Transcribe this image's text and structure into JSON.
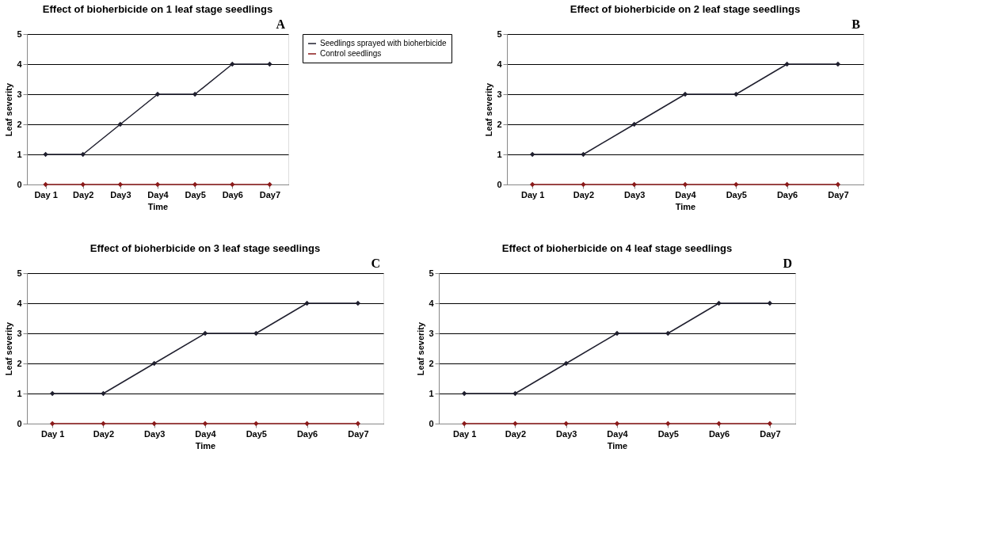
{
  "chart_data": [
    {
      "type": "line",
      "title": "Effect of bioherbicide on 1 leaf stage seedlings",
      "xlabel": "Time",
      "ylabel": "Leaf severity",
      "annotations": [
        "A"
      ],
      "categories": [
        "Day 1",
        "Day2",
        "Day3",
        "Day4",
        "Day5",
        "Day6",
        "Day7"
      ],
      "series": [
        {
          "name": "Seedlings sprayed with bioherbicide",
          "color": "#1f1f2e",
          "values": [
            1,
            1,
            2,
            3,
            3,
            4,
            4
          ]
        },
        {
          "name": "Control seedlings",
          "color": "#8b1a1a",
          "values": [
            0,
            0,
            0,
            0,
            0,
            0,
            0
          ]
        }
      ],
      "ylim": [
        0,
        5
      ],
      "yticks": [
        0,
        1,
        2,
        3,
        4,
        5
      ],
      "grid": "y",
      "legend": "right",
      "marker": "diamond",
      "line_style": "solid"
    },
    {
      "type": "line",
      "title": "Effect of bioherbicide on 2 leaf stage seedlings",
      "xlabel": "Time",
      "ylabel": "Leaf severity",
      "annotations": [
        "B"
      ],
      "categories": [
        "Day 1",
        "Day2",
        "Day3",
        "Day4",
        "Day5",
        "Day6",
        "Day7"
      ],
      "series": [
        {
          "color": "#1f1f2e",
          "values": [
            1,
            1,
            2,
            3,
            3,
            4,
            4
          ]
        },
        {
          "color": "#8b1a1a",
          "values": [
            0,
            0,
            0,
            0,
            0,
            0,
            0
          ]
        }
      ],
      "ylim": [
        0,
        5
      ],
      "yticks": [
        0,
        1,
        2,
        3,
        4,
        5
      ],
      "grid": "y",
      "marker": "diamond",
      "line_style": "solid"
    },
    {
      "type": "line",
      "title": "Effect of bioherbicide on 3 leaf stage seedlings",
      "xlabel": "Time",
      "ylabel": "Leaf severity",
      "annotations": [
        "C"
      ],
      "categories": [
        "Day 1",
        "Day2",
        "Day3",
        "Day4",
        "Day5",
        "Day6",
        "Day7"
      ],
      "series": [
        {
          "color": "#1f1f2e",
          "values": [
            1,
            1,
            2,
            3,
            3,
            4,
            4
          ]
        },
        {
          "color": "#8b1a1a",
          "values": [
            0,
            0,
            0,
            0,
            0,
            0,
            0
          ]
        }
      ],
      "ylim": [
        0,
        5
      ],
      "yticks": [
        0,
        1,
        2,
        3,
        4,
        5
      ],
      "grid": "y",
      "marker": "diamond",
      "line_style": "solid"
    },
    {
      "type": "line",
      "title": "Effect of bioherbicide on 4 leaf stage seedlings",
      "xlabel": "Time",
      "ylabel": "Leaf severity",
      "annotations": [
        "D"
      ],
      "categories": [
        "Day 1",
        "Day2",
        "Day3",
        "Day4",
        "Day5",
        "Day6",
        "Day7"
      ],
      "series": [
        {
          "color": "#1f1f2e",
          "values": [
            1,
            1,
            2,
            3,
            3,
            4,
            4
          ]
        },
        {
          "color": "#8b1a1a",
          "values": [
            0,
            0,
            0,
            0,
            0,
            0,
            0
          ]
        }
      ],
      "ylim": [
        0,
        5
      ],
      "yticks": [
        0,
        1,
        2,
        3,
        4,
        5
      ],
      "grid": "y",
      "marker": "diamond",
      "line_style": "solid"
    }
  ]
}
